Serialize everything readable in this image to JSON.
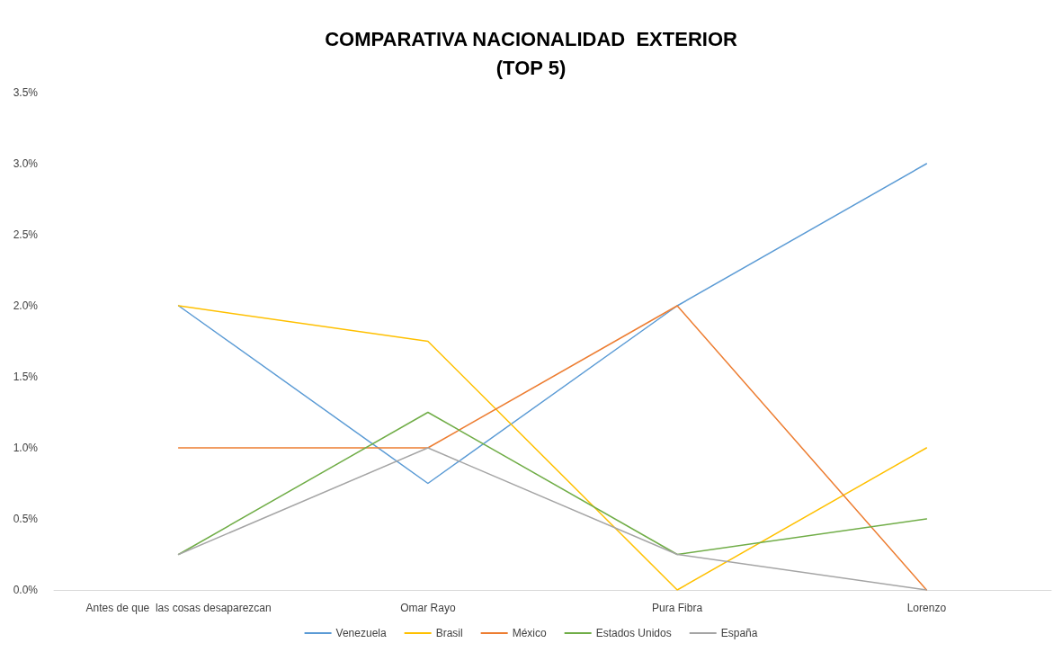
{
  "chart_data": {
    "type": "line",
    "title": "COMPARATIVA NACIONALIDAD  EXTERIOR\n(TOP 5)",
    "categories": [
      "Antes de que  las cosas desaparezcan",
      "Omar Rayo",
      "Pura Fibra",
      "Lorenzo"
    ],
    "series": [
      {
        "name": "Venezuela",
        "color": "#5b9bd5",
        "values": [
          2.0,
          0.75,
          2.0,
          3.0
        ]
      },
      {
        "name": "Brasil",
        "color": "#ffc000",
        "values": [
          2.0,
          1.75,
          0,
          1.0
        ]
      },
      {
        "name": "México",
        "color": "#ed7d31",
        "values": [
          1.0,
          1.0,
          2.0,
          0
        ]
      },
      {
        "name": "Estados Unidos",
        "color": "#70ad47",
        "values": [
          0.25,
          1.25,
          0.25,
          0.5
        ]
      },
      {
        "name": "España",
        "color": "#a5a5a5",
        "values": [
          0.25,
          1.0,
          0.25,
          0
        ]
      }
    ],
    "ylim": [
      0,
      3.5
    ],
    "yticks": [
      {
        "value": 0,
        "label": "0.0%"
      },
      {
        "value": 0.5,
        "label": "0.5%"
      },
      {
        "value": 1,
        "label": "1.0%"
      },
      {
        "value": 1.5,
        "label": "1.5%"
      },
      {
        "value": 2,
        "label": "2.0%"
      },
      {
        "value": 2.5,
        "label": "2.5%"
      },
      {
        "value": 3,
        "label": "3.0%"
      },
      {
        "value": 3.5,
        "label": "3.5%"
      }
    ],
    "grid": false,
    "legend": "bottom",
    "marker": "none",
    "line_style": "solid"
  }
}
